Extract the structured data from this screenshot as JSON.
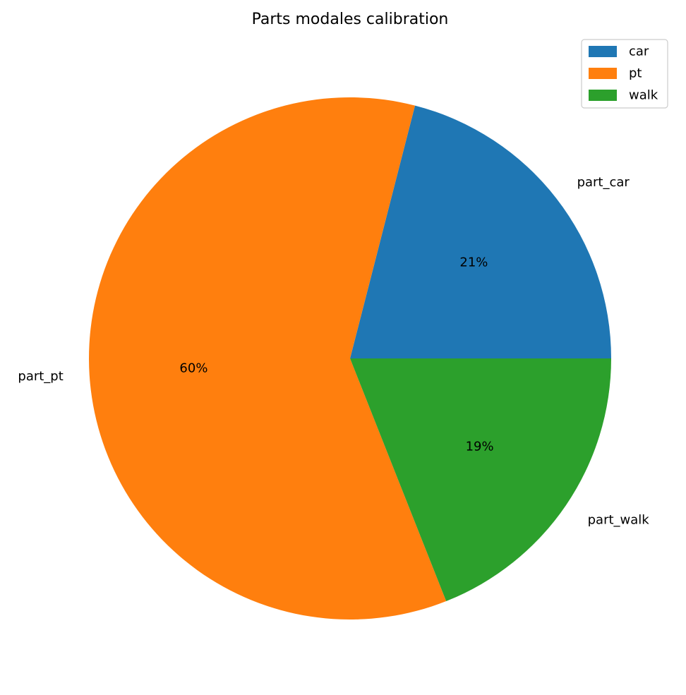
{
  "chart_data": {
    "type": "pie",
    "title": "Parts modales calibration",
    "labels": [
      "part_car",
      "part_pt",
      "part_walk"
    ],
    "values": [
      21,
      60,
      19
    ],
    "autopct_labels": [
      "21%",
      "60%",
      "19%"
    ],
    "colors": [
      "#1f77b4",
      "#ff7f0e",
      "#2ca02c"
    ],
    "legend": {
      "entries": [
        "car",
        "pt",
        "walk"
      ],
      "placement": "upper right"
    },
    "start_angle_deg": 0,
    "direction": "counterclockwise"
  }
}
